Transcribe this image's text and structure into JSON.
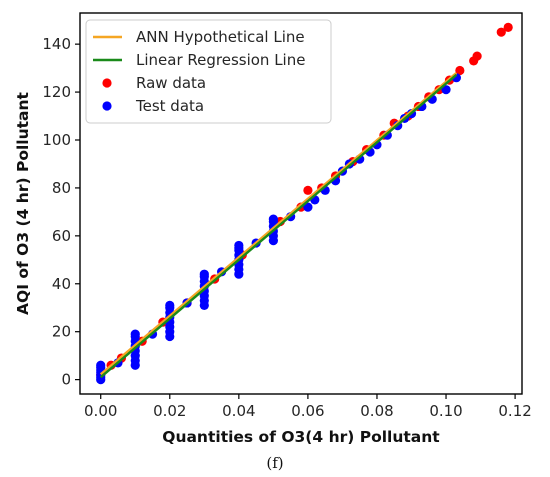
{
  "caption": "(f)",
  "chart_data": {
    "type": "scatter",
    "xlabel": "Quantities of O3(4 hr) Pollutant",
    "ylabel": "AQI of O3 (4 hr) Pollutant",
    "xlim": [
      -0.006,
      0.122
    ],
    "ylim": [
      -6,
      153
    ],
    "x_ticks": [
      0.0,
      0.02,
      0.04,
      0.06,
      0.08,
      0.1,
      0.12
    ],
    "x_tick_labels": [
      "0.00",
      "0.02",
      "0.04",
      "0.06",
      "0.08",
      "0.10",
      "0.12"
    ],
    "y_ticks": [
      0,
      20,
      40,
      60,
      80,
      100,
      120,
      140
    ],
    "y_tick_labels": [
      "0",
      "20",
      "40",
      "60",
      "80",
      "100",
      "120",
      "140"
    ],
    "grid": false,
    "legend_position": "top-left",
    "series": [
      {
        "name": "ANN Hypothetical Line",
        "kind": "line",
        "color": "#f5a623",
        "x": [
          0.0,
          0.103
        ],
        "y": [
          2.2,
          128.0
        ]
      },
      {
        "name": "Linear Regression Line",
        "kind": "line",
        "color": "#1a8a1a",
        "x": [
          0.0,
          0.103
        ],
        "y": [
          1.0,
          127.2
        ]
      },
      {
        "name": "Raw data",
        "kind": "scatter",
        "color": "#ff0000",
        "x": [
          0.0,
          0.003,
          0.006,
          0.012,
          0.018,
          0.025,
          0.033,
          0.041,
          0.052,
          0.058,
          0.06,
          0.064,
          0.068,
          0.073,
          0.077,
          0.082,
          0.085,
          0.089,
          0.092,
          0.095,
          0.098,
          0.101,
          0.104,
          0.108,
          0.109,
          0.116,
          0.118
        ],
        "y": [
          2,
          6,
          9,
          16,
          24,
          32,
          42,
          52,
          66,
          72,
          79,
          80,
          85,
          91,
          96,
          102,
          107,
          110,
          114,
          118,
          121,
          125,
          129,
          133,
          135,
          145,
          147
        ]
      },
      {
        "name": "Test data",
        "kind": "scatter",
        "color": "#0000ff",
        "x": [
          0.0,
          0.0,
          0.0,
          0.0,
          0.0,
          0.0,
          0.0,
          0.005,
          0.01,
          0.01,
          0.01,
          0.01,
          0.01,
          0.01,
          0.01,
          0.01,
          0.015,
          0.02,
          0.02,
          0.02,
          0.02,
          0.02,
          0.02,
          0.02,
          0.02,
          0.025,
          0.03,
          0.03,
          0.03,
          0.03,
          0.03,
          0.03,
          0.03,
          0.03,
          0.035,
          0.04,
          0.04,
          0.04,
          0.04,
          0.04,
          0.04,
          0.04,
          0.04,
          0.045,
          0.05,
          0.05,
          0.05,
          0.05,
          0.05,
          0.05,
          0.055,
          0.06,
          0.062,
          0.065,
          0.068,
          0.07,
          0.072,
          0.075,
          0.078,
          0.08,
          0.083,
          0.086,
          0.088,
          0.09,
          0.093,
          0.096,
          0.1,
          0.103
        ],
        "y": [
          0,
          1,
          2,
          3,
          4,
          5,
          6,
          7,
          6,
          8,
          10,
          12,
          14,
          16,
          18,
          19,
          19,
          18,
          20,
          22,
          24,
          26,
          28,
          30,
          31,
          32,
          31,
          33,
          35,
          37,
          39,
          41,
          43,
          44,
          45,
          44,
          46,
          48,
          50,
          52,
          54,
          55,
          56,
          57,
          58,
          60,
          62,
          64,
          66,
          67,
          68,
          72,
          75,
          79,
          83,
          87,
          90,
          92,
          95,
          98,
          102,
          106,
          109,
          111,
          114,
          117,
          121,
          126
        ]
      }
    ]
  }
}
